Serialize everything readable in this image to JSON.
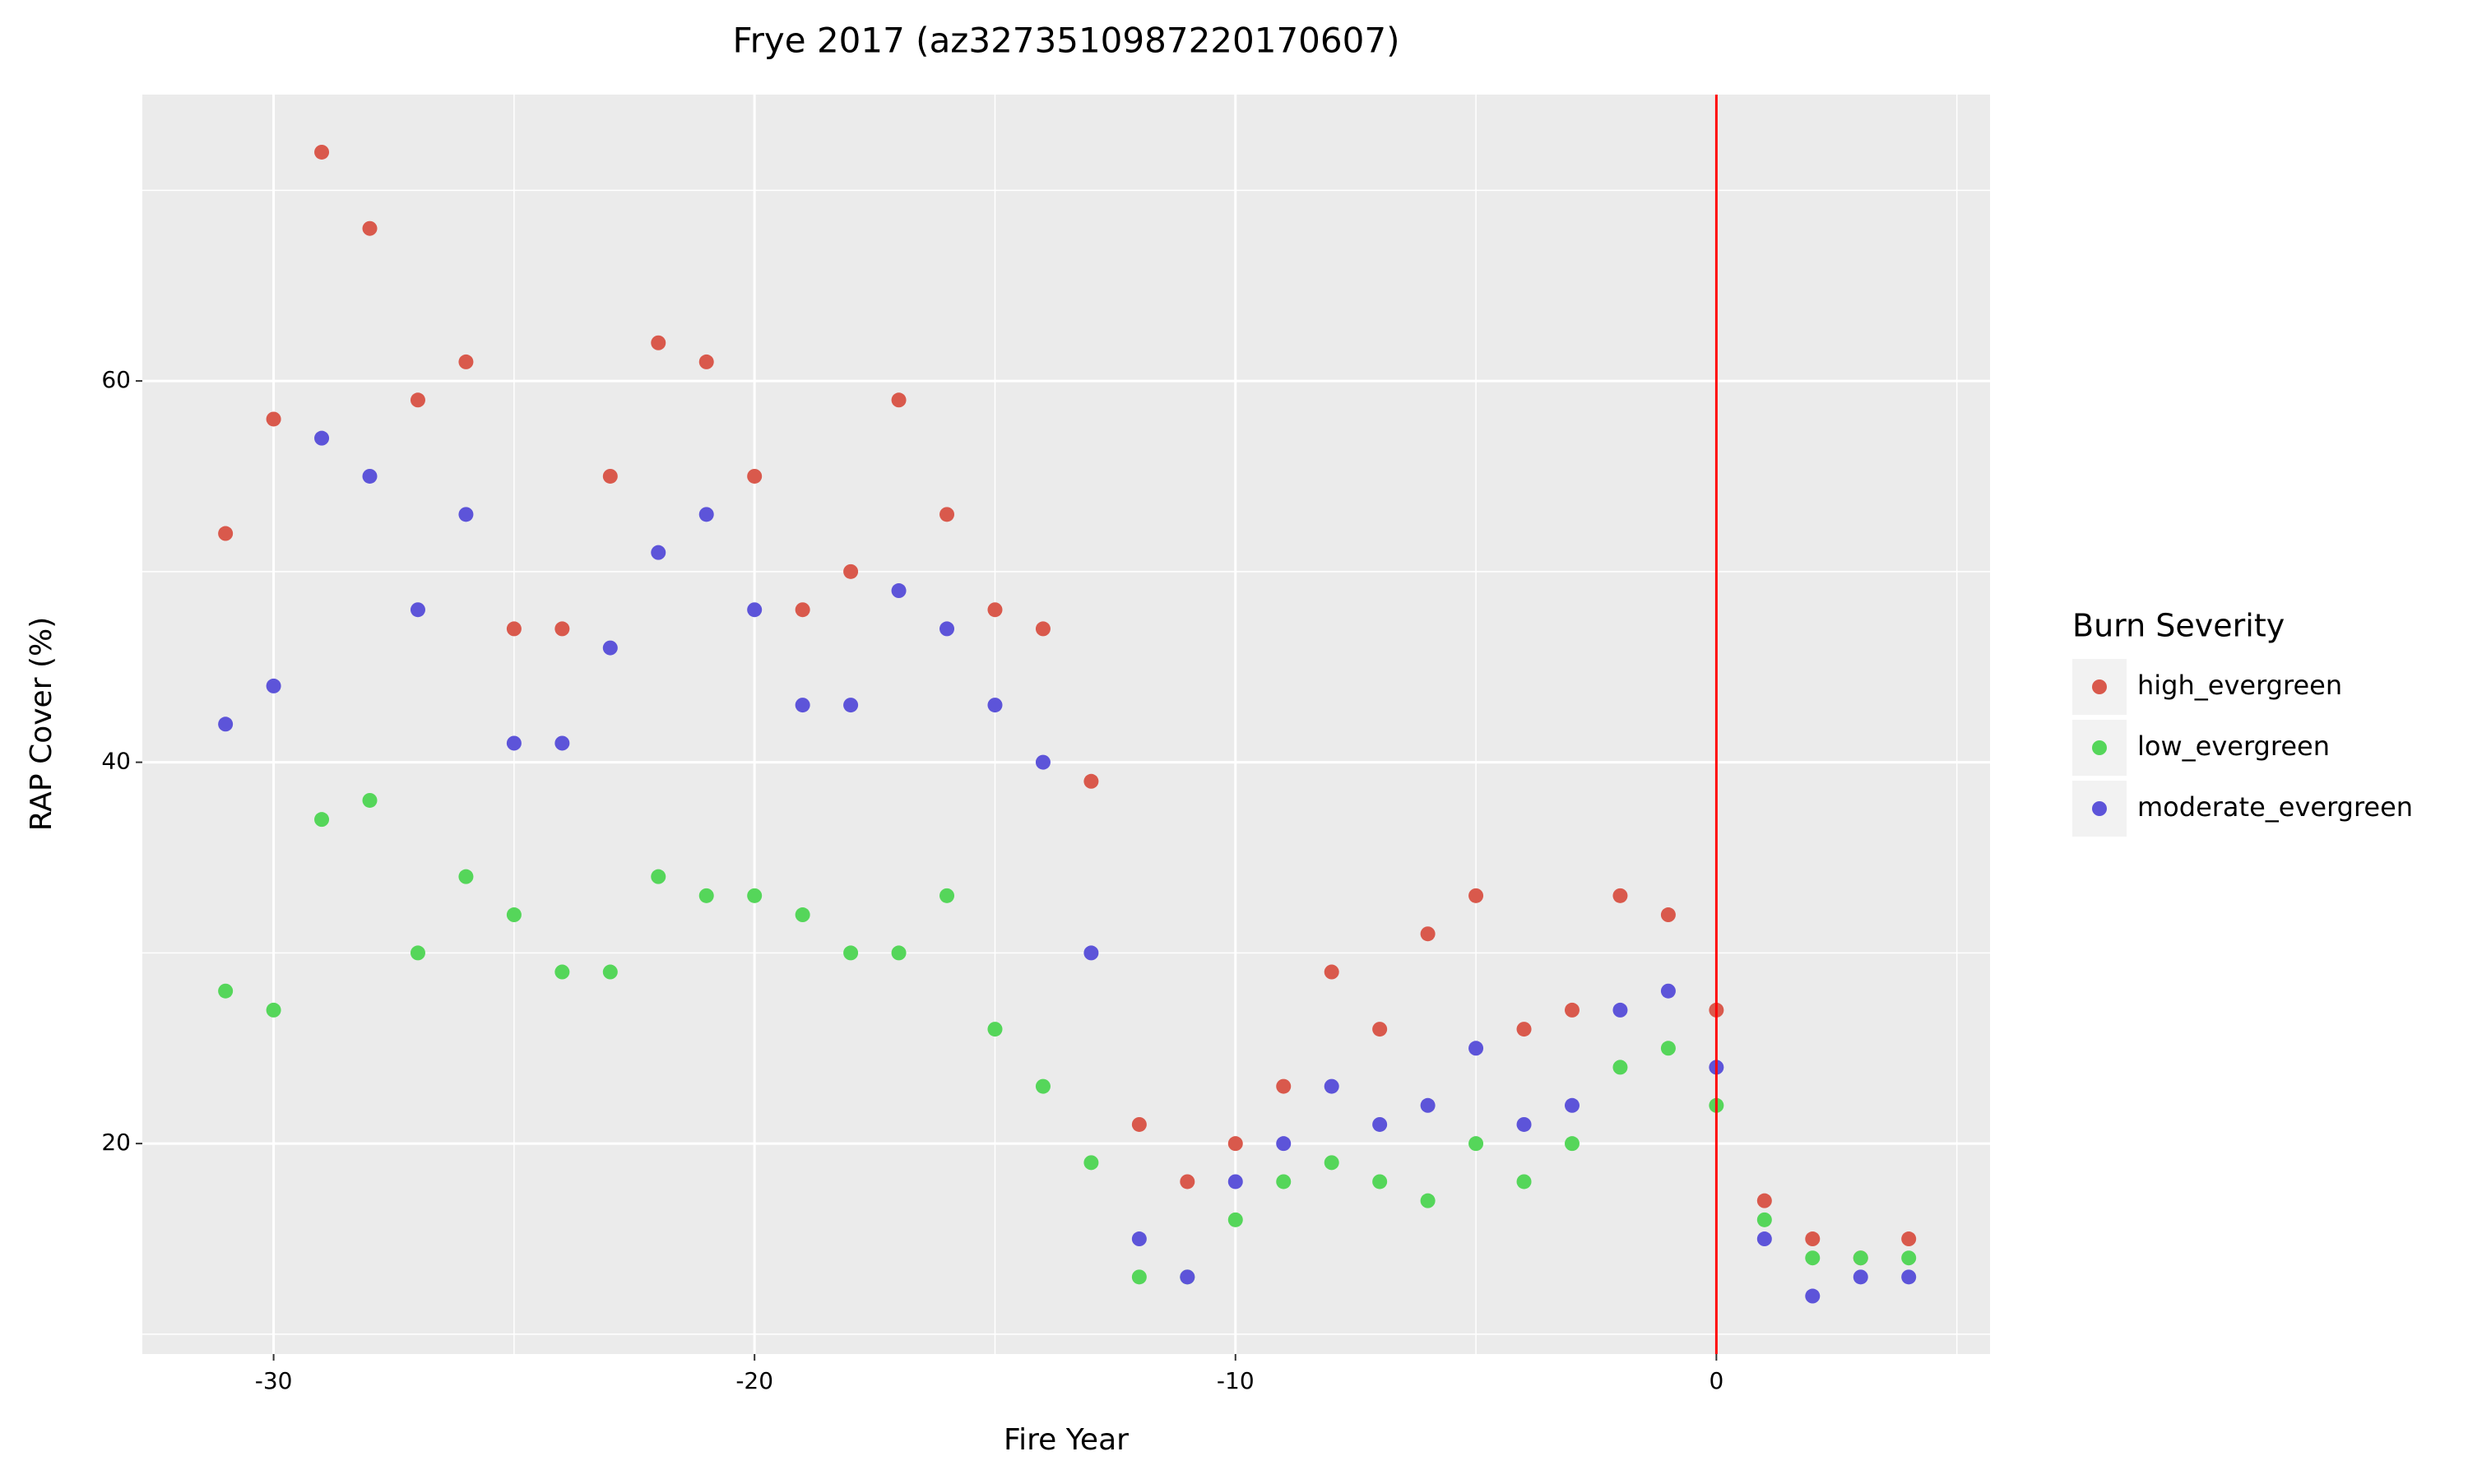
{
  "chart_data": {
    "type": "scatter",
    "title": "Frye 2017 (az3273510987220170607)",
    "x_label": "Fire Year",
    "y_label": "RAP Cover (%)",
    "legend_title": "Burn Severity",
    "legend_position": "right",
    "grid": true,
    "vline": 0,
    "vline_color": "#ff0000",
    "xlim": [
      -32.73,
      5.69
    ],
    "ylim": [
      8.96,
      75.02
    ],
    "xticks": [
      -30,
      -20,
      -10,
      0
    ],
    "yticks": [
      20,
      40,
      60
    ],
    "minor_xticks": [
      -25,
      -15,
      -5,
      5
    ],
    "minor_yticks": [
      10,
      30,
      50,
      70
    ],
    "x": [
      -31,
      -30,
      -29,
      -28,
      -27,
      -26,
      -25,
      -24,
      -23,
      -22,
      -21,
      -20,
      -19,
      -18,
      -17,
      -16,
      -15,
      -14,
      -13,
      -12,
      -11,
      -10,
      -9,
      -8,
      -7,
      -6,
      -5,
      -4,
      -3,
      -2,
      -1,
      0,
      1,
      2,
      3,
      4
    ],
    "series": [
      {
        "name": "high_evergreen",
        "color": "#d9594c",
        "values": [
          52,
          58,
          72,
          68,
          59,
          61,
          47,
          47,
          55,
          62,
          61,
          55,
          48,
          50,
          59,
          53,
          48,
          47,
          39,
          21,
          18,
          20,
          23,
          29,
          26,
          31,
          33,
          26,
          27,
          33,
          32,
          27,
          17,
          15,
          14,
          15
        ]
      },
      {
        "name": "low_evergreen",
        "color": "#55d65a",
        "values": [
          28,
          27,
          37,
          38,
          30,
          34,
          32,
          29,
          29,
          34,
          33,
          33,
          32,
          30,
          30,
          33,
          26,
          23,
          19,
          13,
          13,
          16,
          18,
          19,
          18,
          17,
          20,
          18,
          20,
          24,
          25,
          22,
          16,
          14,
          14,
          14
        ]
      },
      {
        "name": "moderate_evergreen",
        "color": "#5d54d9",
        "values": [
          42,
          44,
          57,
          55,
          48,
          53,
          41,
          41,
          46,
          51,
          53,
          48,
          43,
          43,
          49,
          47,
          43,
          40,
          30,
          15,
          13,
          18,
          20,
          23,
          21,
          22,
          25,
          21,
          22,
          27,
          28,
          24,
          15,
          12,
          13,
          13
        ]
      }
    ]
  }
}
